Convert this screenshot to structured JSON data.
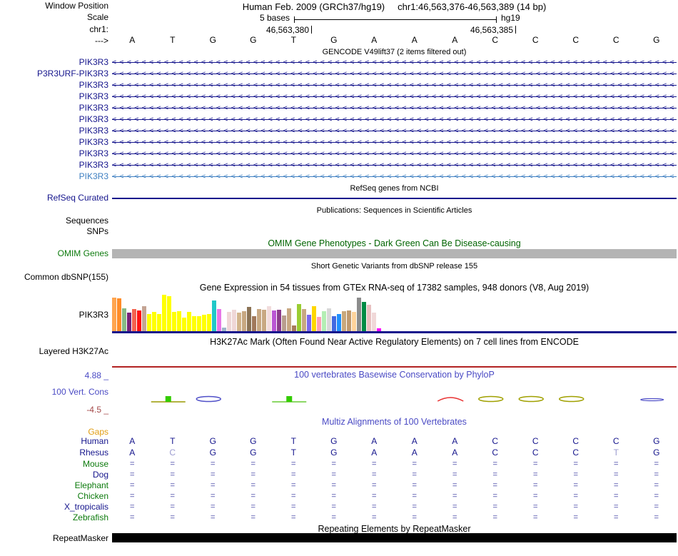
{
  "header": {
    "window_position_label": "Window Position",
    "assembly": "Human Feb. 2009 (GRCh37/hg19)",
    "position": "chr1:46,563,376-46,563,389 (14 bp)",
    "scale_label": "Scale",
    "scale_value": "5 bases",
    "scale_right_label": "hg19",
    "chrom_label": "chr1:",
    "coord_left": "46,563,380",
    "coord_right": "46,563,385",
    "strand_label": "--->"
  },
  "ruler": {
    "bases": [
      "A",
      "T",
      "G",
      "G",
      "T",
      "G",
      "A",
      "A",
      "A",
      "C",
      "C",
      "C",
      "C",
      "G"
    ]
  },
  "gencode": {
    "caption": "GENCODE V49lift37 (2 items filtered out)",
    "rows": [
      {
        "label": "PIK3R3",
        "color": "#14148C"
      },
      {
        "label": "P3R3URF-PIK3R3",
        "color": "#14148C"
      },
      {
        "label": "PIK3R3",
        "color": "#14148C"
      },
      {
        "label": "PIK3R3",
        "color": "#14148C"
      },
      {
        "label": "PIK3R3",
        "color": "#14148C"
      },
      {
        "label": "PIK3R3",
        "color": "#14148C"
      },
      {
        "label": "PIK3R3",
        "color": "#14148C"
      },
      {
        "label": "PIK3R3",
        "color": "#14148C"
      },
      {
        "label": "PIK3R3",
        "color": "#14148C"
      },
      {
        "label": "PIK3R3",
        "color": "#14148C"
      },
      {
        "label": "PIK3R3",
        "color": "#3E7FC1"
      }
    ]
  },
  "refseq": {
    "caption": "RefSeq genes from NCBI",
    "label": "RefSeq Curated"
  },
  "publications": {
    "caption": "Publications: Sequences in Scientific Articles",
    "sequences_label": "Sequences",
    "snps_label": "SNPs"
  },
  "omim": {
    "caption": "OMIM Gene Phenotypes - Dark Green Can Be Disease-causing",
    "label": "OMIM Genes",
    "bar_color": "#B4B4B4"
  },
  "dbsnp": {
    "caption": "Short Genetic Variants from dbSNP release 155",
    "label": "Common dbSNP(155)"
  },
  "gtex": {
    "caption": "Gene Expression in 54 tissues from GTEx RNA-seq of 17382 samples, 948 donors (V8, Aug 2019)",
    "gene_label": "PIK3R3"
  },
  "h3k27ac": {
    "caption": "H3K27Ac Mark (Often Found Near Active Regulatory Elements) on 7 cell lines from ENCODE",
    "label": "Layered H3K27Ac",
    "baseline_color": "#B22222"
  },
  "conservation": {
    "caption": "100 vertebrates Basewise Conservation by PhyloP",
    "label": "100 Vert. Cons",
    "max_label": "4.88 _",
    "min_label": "-4.5 _",
    "marks": [
      {
        "col": 2,
        "shape": "square",
        "color": "#33CC00",
        "line": "#999900"
      },
      {
        "col": 3,
        "shape": "ellipse",
        "color": "#5050C8"
      },
      {
        "col": 5,
        "shape": "square",
        "color": "#33CC00",
        "line": "#66CC33"
      },
      {
        "col": 9,
        "shape": "arc",
        "color": "#E83030"
      },
      {
        "col": 10,
        "shape": "ellipse",
        "color": "#A0A000"
      },
      {
        "col": 11,
        "shape": "ellipse",
        "color": "#A0A000"
      },
      {
        "col": 12,
        "shape": "ellipse",
        "color": "#A0A000"
      },
      {
        "col": 14,
        "shape": "line",
        "color": "#5050C8"
      }
    ]
  },
  "multiz": {
    "caption": "Multiz Alignments of 100 Vertebrates",
    "gaps_label": "Gaps",
    "species": [
      {
        "name": "Human",
        "label_color": "#14148C",
        "type": "bases",
        "bases": [
          "A",
          "T",
          "G",
          "G",
          "T",
          "G",
          "A",
          "A",
          "A",
          "C",
          "C",
          "C",
          "C",
          "G"
        ],
        "mismatches": []
      },
      {
        "name": "Rhesus",
        "label_color": "#14148C",
        "type": "bases",
        "bases": [
          "A",
          "C",
          "G",
          "G",
          "T",
          "G",
          "A",
          "A",
          "A",
          "C",
          "C",
          "C",
          "T",
          "G"
        ],
        "mismatches": [
          1,
          12
        ]
      },
      {
        "name": "Mouse",
        "label_color": "#0C7A0C",
        "type": "equals"
      },
      {
        "name": "Dog",
        "label_color": "#14148C",
        "type": "equals"
      },
      {
        "name": "Elephant",
        "label_color": "#0C7A0C",
        "type": "equals"
      },
      {
        "name": "Chicken",
        "label_color": "#0C7A0C",
        "type": "equals"
      },
      {
        "name": "X_tropicalis",
        "label_color": "#14148C",
        "type": "equals"
      },
      {
        "name": "Zebrafish",
        "label_color": "#0C7A0C",
        "type": "equals"
      }
    ],
    "base_color": "#14148C",
    "mismatch_color": "#9C9CD0"
  },
  "repeatmasker": {
    "caption": "Repeating Elements by RepeatMasker",
    "label": "RepeatMasker",
    "bar_color": "#000000"
  },
  "chart_data": {
    "type": "bar",
    "title": "Gene Expression in 54 tissues from GTEx RNA-seq of 17382 samples, 948 donors (V8, Aug 2019)",
    "gene": "PIK3R3",
    "n_tissues": 54,
    "note": "relative expression per GTEx tissue, heights normalized 0-1; tissue names not shown in image",
    "values": [
      0.93,
      0.9,
      0.62,
      0.5,
      0.6,
      0.57,
      0.68,
      0.48,
      0.52,
      0.48,
      1.0,
      0.97,
      0.52,
      0.55,
      0.38,
      0.52,
      0.42,
      0.42,
      0.45,
      0.48,
      0.85,
      0.6,
      0.1,
      0.52,
      0.58,
      0.5,
      0.55,
      0.66,
      0.42,
      0.6,
      0.58,
      0.68,
      0.56,
      0.58,
      0.44,
      0.62,
      0.16,
      0.75,
      0.6,
      0.46,
      0.69,
      0.4,
      0.54,
      0.62,
      0.42,
      0.48,
      0.55,
      0.57,
      0.52,
      0.92,
      0.8,
      0.72,
      0.5,
      0.08
    ],
    "bar_colors": [
      "#FFA54F",
      "#FF8C28",
      "#86BB86",
      "#772277",
      "#F4624F",
      "#FF1111",
      "#C4A494",
      "#FFFF00",
      "#FFFF00",
      "#FFFF00",
      "#FFFF00",
      "#FFFF00",
      "#FFFF00",
      "#FFFF00",
      "#FFFF00",
      "#FFFF00",
      "#FFFF00",
      "#FFFF00",
      "#FFFF00",
      "#FFFF00",
      "#20C8C8",
      "#E878E8",
      "#9FB6C8",
      "#EFD7D7",
      "#EFD7D7",
      "#D2B48C",
      "#C8A882",
      "#8B7355",
      "#A0785A",
      "#C8A882",
      "#C8A882",
      "#F2DCDC",
      "#BA55D3",
      "#8B3A8B",
      "#B89E8E",
      "#C8A882",
      "#A67B5B",
      "#9ACD32",
      "#C8A882",
      "#7B68EE",
      "#FFD700",
      "#FFA0B4",
      "#B4EEB4",
      "#D8D8D8",
      "#4169E1",
      "#1E90FF",
      "#C8A87C",
      "#C09A6E",
      "#FFD39B",
      "#8C8C8C",
      "#008B45",
      "#E8C0C0",
      "#F0D8D8",
      "#FF00FF"
    ],
    "baseline_color": "#14148C"
  },
  "colors": {
    "grid": "#DCDCF0",
    "track_edge": "#F0A8A8",
    "navy": "#14148C",
    "caption_blue": "#4A4AC4"
  }
}
